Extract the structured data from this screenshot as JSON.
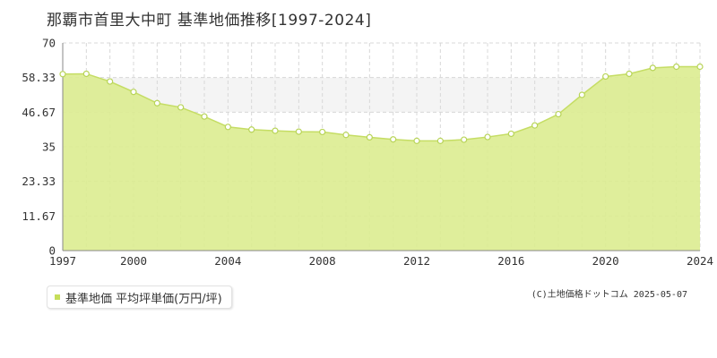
{
  "title": "那覇市首里大中町 基準地価推移[1997-2024]",
  "legend": {
    "label": "基準地価 平均坪単価(万円/坪)"
  },
  "credit": "(C)土地価格ドットコム 2025-05-07",
  "colors": {
    "fill": "#dcec90",
    "line": "#c5dd64",
    "marker_stroke": "#b8d458",
    "band": "#f4f4f4",
    "grid": "#d8d8d8",
    "axis": "#888888",
    "legend_swatch": "#c6de5a"
  },
  "chart_data": {
    "type": "area",
    "title": "那覇市首里大中町 基準地価推移[1997-2024]",
    "xlabel": "",
    "ylabel": "",
    "xlim": [
      1997,
      2024
    ],
    "ylim": [
      0,
      70
    ],
    "y_ticks": [
      "0",
      "11.67",
      "23.33",
      "35",
      "46.67",
      "58.33",
      "70"
    ],
    "x_ticks": [
      "1997",
      "2000",
      "2004",
      "2008",
      "2012",
      "2016",
      "2020",
      "2024"
    ],
    "grid": true,
    "legend_position": "bottom-left",
    "shaded_band": [
      46.67,
      58.33
    ],
    "series": [
      {
        "name": "基準地価 平均坪単価(万円/坪)",
        "x": [
          1997,
          1998,
          1999,
          2000,
          2001,
          2002,
          2003,
          2004,
          2005,
          2006,
          2007,
          2008,
          2009,
          2010,
          2011,
          2012,
          2013,
          2014,
          2015,
          2016,
          2017,
          2018,
          2019,
          2020,
          2021,
          2022,
          2023,
          2024
        ],
        "values": [
          59.5,
          59.6,
          57.0,
          53.5,
          49.7,
          48.3,
          45.2,
          41.7,
          40.8,
          40.4,
          40.1,
          40.0,
          39.0,
          38.2,
          37.5,
          37.0,
          37.0,
          37.4,
          38.3,
          39.4,
          42.2,
          46.0,
          52.5,
          58.7,
          59.6,
          61.6,
          62.0,
          62.0
        ]
      }
    ]
  }
}
